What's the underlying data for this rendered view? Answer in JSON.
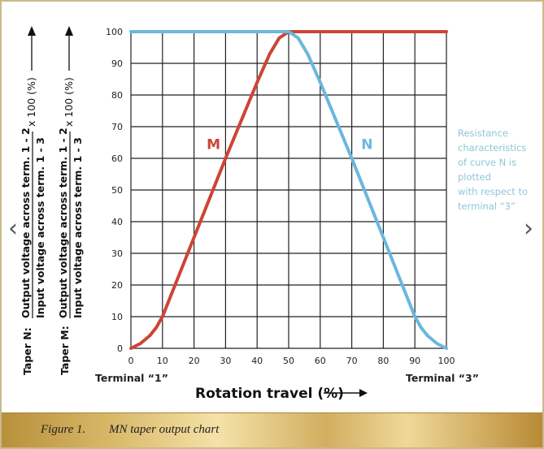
{
  "chart_data": {
    "type": "line",
    "title": "",
    "xlabel": "Rotation travel (%)",
    "xlim": [
      0,
      100
    ],
    "ylim": [
      0,
      100
    ],
    "grid": true,
    "x_ticks": [
      "0",
      "10",
      "20",
      "30",
      "40",
      "50",
      "60",
      "70",
      "80",
      "90",
      "100"
    ],
    "y_ticks": [
      "0",
      "10",
      "20",
      "30",
      "40",
      "50",
      "60",
      "70",
      "80",
      "90",
      "100"
    ],
    "x_end_labels": {
      "left": "Terminal “1”",
      "right": "Terminal “3”"
    },
    "ylabels": [
      {
        "prefix": "Taper N:",
        "numerator": "Output voltage across term. 1 - 2",
        "denominator": "Input voltage across term. 1 - 3",
        "factor": "x 100 (%)"
      },
      {
        "prefix": "Taper M:",
        "numerator": "Output voltage across term. 1 - 2",
        "denominator": "Input voltage across term. 1 - 3",
        "factor": "x 100 (%)"
      }
    ],
    "series": [
      {
        "name": "M",
        "color": "#cc4536",
        "x": [
          0,
          3,
          6,
          8,
          10,
          20,
          30,
          40,
          44,
          47,
          50,
          100
        ],
        "y": [
          0,
          1.5,
          4,
          6.5,
          10,
          35,
          60,
          84,
          93,
          98,
          100,
          100
        ]
      },
      {
        "name": "N",
        "color": "#6ab8dc",
        "x": [
          0,
          50,
          53,
          56,
          60,
          70,
          80,
          90,
          92,
          94,
          97,
          100
        ],
        "y": [
          100,
          100,
          98,
          93,
          84,
          60,
          35,
          10,
          6.5,
          4,
          1.5,
          0
        ]
      }
    ],
    "annotation": [
      "Resistance",
      "characteristics",
      "of curve N is",
      "plotted",
      "with respect to",
      "terminal “3”"
    ]
  },
  "caption": {
    "number": "Figure 1.",
    "text": "MN taper output chart"
  },
  "nav": {
    "prev": "‹",
    "next": "›"
  }
}
